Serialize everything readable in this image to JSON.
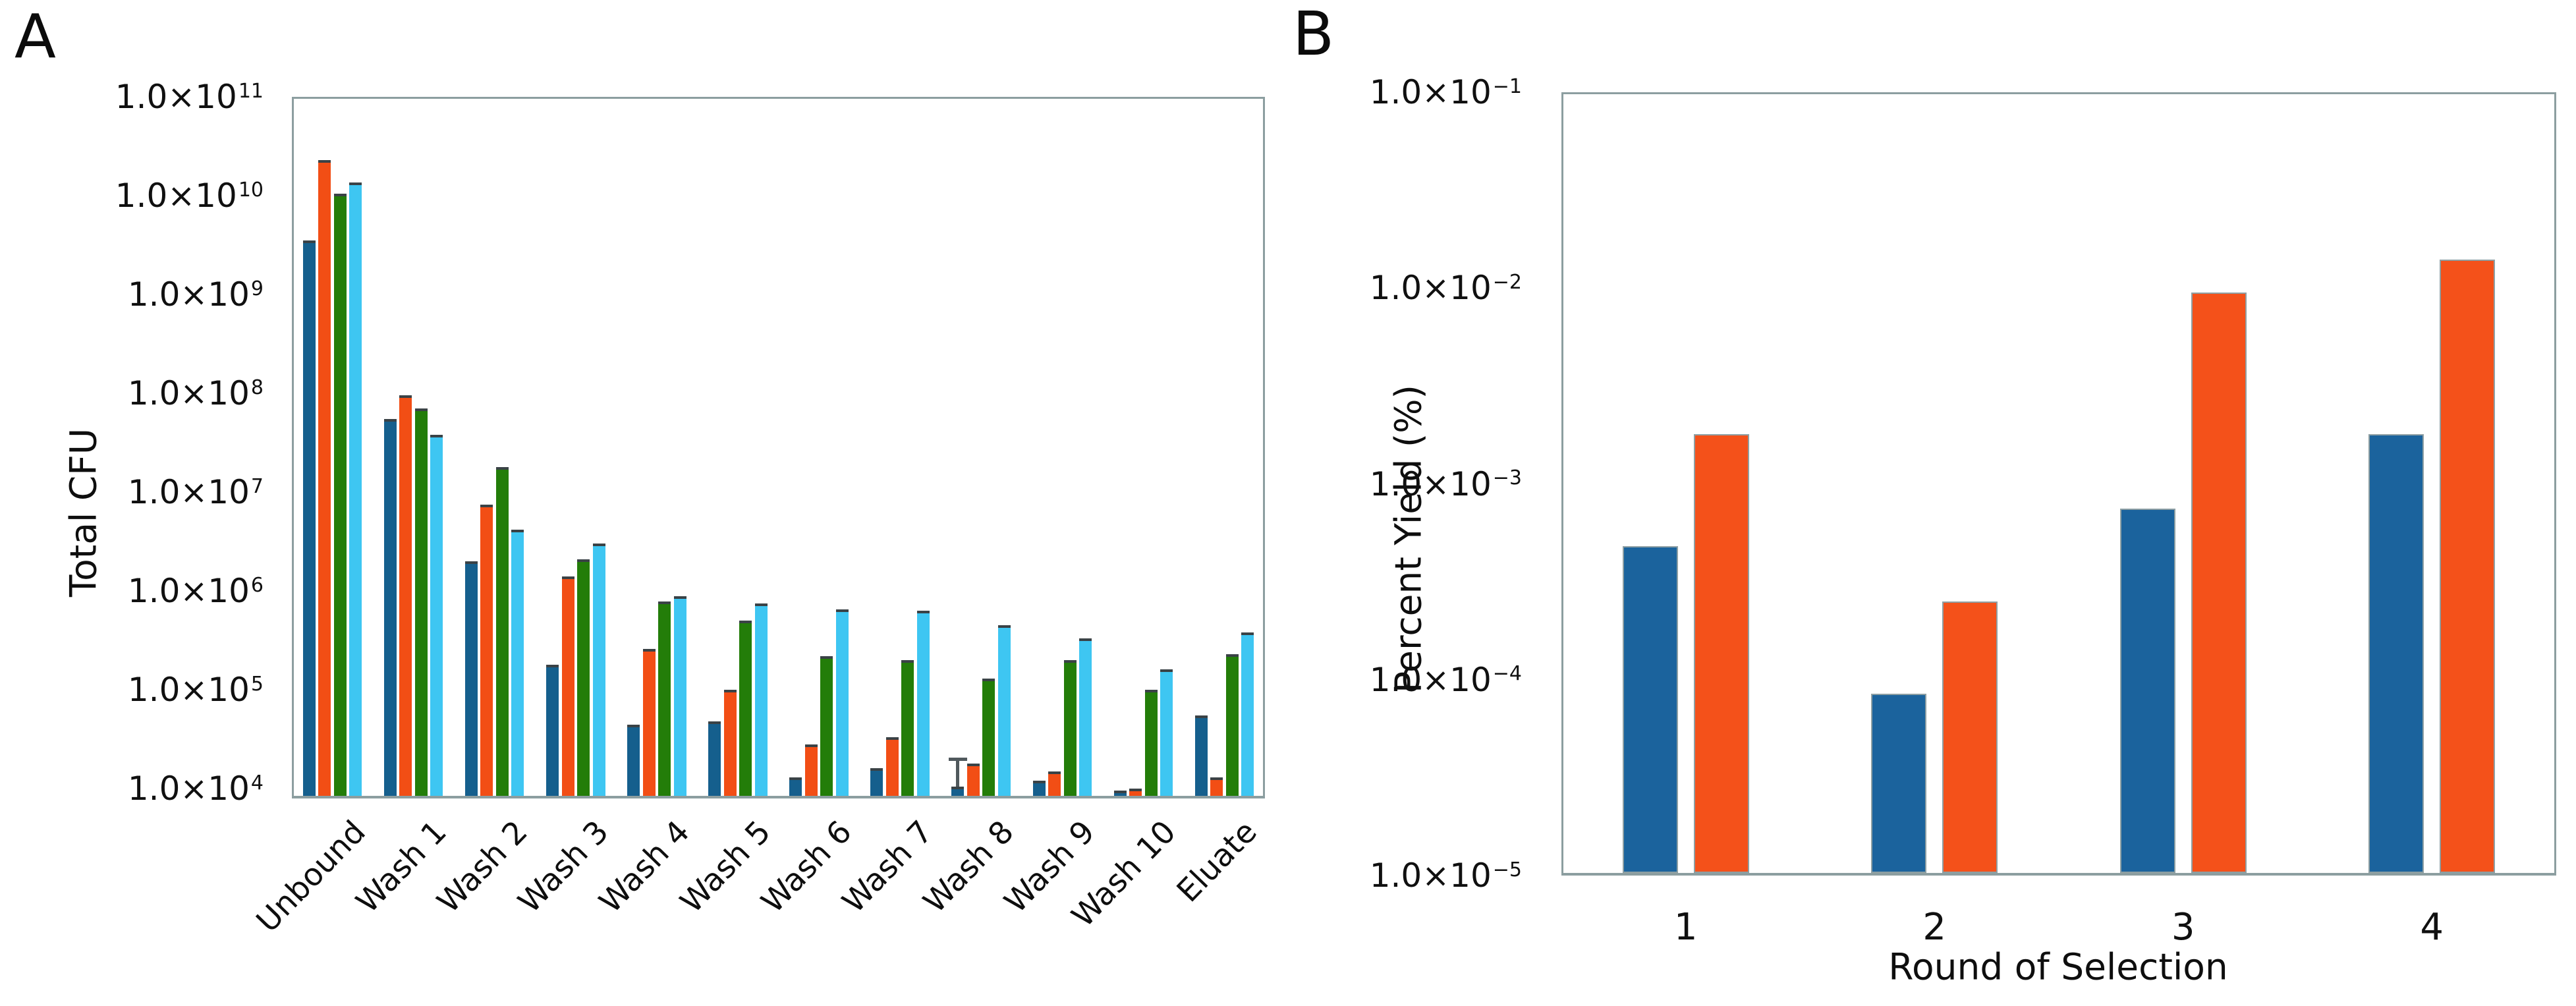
{
  "figure": {
    "background": "#ffffff",
    "frame_color": "#8C9EA0",
    "bar_top_cap_color": "#3A4246",
    "error_bar_color": "#50595D"
  },
  "chart_data": [
    {
      "panel_label": "A",
      "type": "bar",
      "yscale": "log",
      "title": "",
      "xlabel": "",
      "ylabel": "Total CFU",
      "ylim": [
        10000.0,
        100000000000.0
      ],
      "grid": false,
      "legend_position": "none",
      "yticks": [
        {
          "base": "1.0×10",
          "exp": "11",
          "value": 100000000000.0
        },
        {
          "base": "1.0×10",
          "exp": "10",
          "value": 10000000000.0
        },
        {
          "base": "1.0×10",
          "exp": "9",
          "value": 1000000000.0
        },
        {
          "base": "1.0×10",
          "exp": "8",
          "value": 100000000.0
        },
        {
          "base": "1.0×10",
          "exp": "7",
          "value": 10000000.0
        },
        {
          "base": "1.0×10",
          "exp": "6",
          "value": 1000000.0
        },
        {
          "base": "1.0×10",
          "exp": "5",
          "value": 100000.0
        },
        {
          "base": "1.0×10",
          "exp": "4",
          "value": 10000.0
        }
      ],
      "categories": [
        "Unbound",
        "Wash 1",
        "Wash 2",
        "Wash 3",
        "Wash 4",
        "Wash 5",
        "Wash 6",
        "Wash 7",
        "Wash 8",
        "Wash 9",
        "Wash 10",
        "Eluate"
      ],
      "series": [
        {
          "name": "dark-blue",
          "color": "#155F8D",
          "values": [
            3500000000.0,
            55000000.0,
            2000000.0,
            180000.0,
            44000.0,
            48000.0,
            13000.0,
            16000.0,
            10500.0,
            12000.0,
            9500.0,
            55000.0
          ]
        },
        {
          "name": "orange-red",
          "color": "#F24E15",
          "values": [
            23000000000.0,
            95000000.0,
            7500000.0,
            1400000.0,
            260000.0,
            100000.0,
            28000.0,
            33000.0,
            18000.0,
            15000.0,
            10000.0,
            13000.0
          ]
        },
        {
          "name": "green",
          "color": "#237D09",
          "values": [
            10500000000.0,
            70000000.0,
            18000000.0,
            2100000.0,
            780000.0,
            500000.0,
            220000.0,
            200000.0,
            130000.0,
            200000.0,
            100000.0,
            230000.0
          ]
        },
        {
          "name": "sky-blue",
          "color": "#3EC6F2",
          "values": [
            13500000000.0,
            38000000.0,
            4200000.0,
            3000000.0,
            880000.0,
            750000.0,
            650000.0,
            630000.0,
            450000.0,
            330000.0,
            160000.0,
            380000.0
          ]
        }
      ],
      "error_bars": [
        {
          "series": "dark-blue",
          "series_index": 0,
          "category": "Wash 8",
          "category_index": 8,
          "top_value": 20000.0
        }
      ]
    },
    {
      "panel_label": "B",
      "type": "bar",
      "yscale": "log",
      "title": "",
      "xlabel": "Round of Selection",
      "ylabel": "Percent Yield (%)",
      "ylim": [
        1e-05,
        0.1
      ],
      "grid": false,
      "legend_position": "none",
      "yticks": [
        {
          "base": "1.0×10",
          "exp": "−1",
          "value": 0.1
        },
        {
          "base": "1.0×10",
          "exp": "−2",
          "value": 0.01
        },
        {
          "base": "1.0×10",
          "exp": "−3",
          "value": 0.001
        },
        {
          "base": "1.0×10",
          "exp": "−4",
          "value": 0.0001
        },
        {
          "base": "1.0×10",
          "exp": "−5",
          "value": 1e-05
        }
      ],
      "categories": [
        "1",
        "2",
        "3",
        "4"
      ],
      "series": [
        {
          "name": "blue",
          "color": "#1B639D",
          "values": [
            0.00048,
            8.5e-05,
            0.00075,
            0.0018
          ]
        },
        {
          "name": "orange-red",
          "color": "#F4511A",
          "values": [
            0.0018,
            0.00025,
            0.0095,
            0.014
          ]
        }
      ],
      "error_bars": []
    }
  ]
}
